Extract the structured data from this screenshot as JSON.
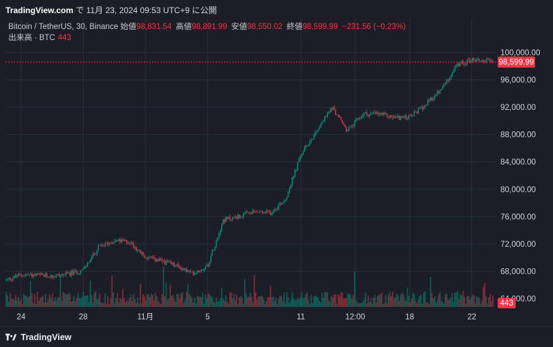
{
  "header": {
    "site": "TradingView.com",
    "text": " で 11月 23, 2024 09:53 UTC+9 に公開"
  },
  "ohlc": {
    "symbol": "Bitcoin / TetherUS, 30, Binance",
    "open_label": "始値",
    "open": "98,831.54",
    "high_label": "高値",
    "high": "98,891.99",
    "low_label": "安値",
    "low": "98,550.02",
    "close_label": "終値",
    "close": "98,599.99",
    "change": "−231.56 (−0.23%)"
  },
  "volume": {
    "label": "出来高 · BTC",
    "value": "443"
  },
  "footer": {
    "brand": "TradingView"
  },
  "colors": {
    "background": "#1b1e27",
    "grid": "#2a2e39",
    "up": "#089981",
    "down": "#f23645",
    "axis_text": "#d1d4dc"
  },
  "chart_data": {
    "type": "candlestick",
    "xlabel": "",
    "ylabel": "",
    "x_tick_labels": [
      "24",
      "28",
      "11月",
      "5",
      "11",
      "12:00",
      "18",
      "22"
    ],
    "y_tick_labels": [
      "100,000.00",
      "96,000.00",
      "92,000.00",
      "88,000.00",
      "84,000.00",
      "80,000.00",
      "76,000.00",
      "72,000.00",
      "68,000.00",
      "64,000.00"
    ],
    "y_ticks": [
      100000,
      96000,
      92000,
      88000,
      84000,
      80000,
      76000,
      72000,
      68000,
      64000
    ],
    "ylim": [
      62800,
      101400
    ],
    "grid": true,
    "last_price": 98599.99,
    "last_price_label": "98,599.99",
    "last_volume": 443,
    "last_volume_label": "443",
    "price_path": [
      {
        "date": "2024-10-23",
        "price": 66700
      },
      {
        "date": "2024-10-24",
        "price": 67500
      },
      {
        "date": "2024-10-26",
        "price": 67300
      },
      {
        "date": "2024-10-27",
        "price": 67600
      },
      {
        "date": "2024-10-28",
        "price": 68200
      },
      {
        "date": "2024-10-29",
        "price": 71500
      },
      {
        "date": "2024-10-30",
        "price": 72500
      },
      {
        "date": "2024-10-31",
        "price": 72300
      },
      {
        "date": "2024-11-01",
        "price": 70000
      },
      {
        "date": "2024-11-02",
        "price": 69500
      },
      {
        "date": "2024-11-03",
        "price": 68800
      },
      {
        "date": "2024-11-04",
        "price": 67700
      },
      {
        "date": "2024-11-05",
        "price": 68800
      },
      {
        "date": "2024-11-06",
        "price": 75500
      },
      {
        "date": "2024-11-07",
        "price": 76000
      },
      {
        "date": "2024-11-08",
        "price": 76700
      },
      {
        "date": "2024-11-09",
        "price": 76500
      },
      {
        "date": "2024-11-10",
        "price": 78500
      },
      {
        "date": "2024-11-11",
        "price": 85000
      },
      {
        "date": "2024-11-12",
        "price": 88500
      },
      {
        "date": "2024-11-13",
        "price": 92000
      },
      {
        "date": "2024-11-14",
        "price": 88500
      },
      {
        "date": "2024-11-15",
        "price": 91000
      },
      {
        "date": "2024-11-16",
        "price": 91000
      },
      {
        "date": "2024-11-17",
        "price": 90500
      },
      {
        "date": "2024-11-18",
        "price": 90500
      },
      {
        "date": "2024-11-19",
        "price": 92300
      },
      {
        "date": "2024-11-20",
        "price": 94500
      },
      {
        "date": "2024-11-21",
        "price": 98000
      },
      {
        "date": "2024-11-22",
        "price": 99000
      },
      {
        "date": "2024-11-23",
        "price": 98600
      }
    ]
  }
}
